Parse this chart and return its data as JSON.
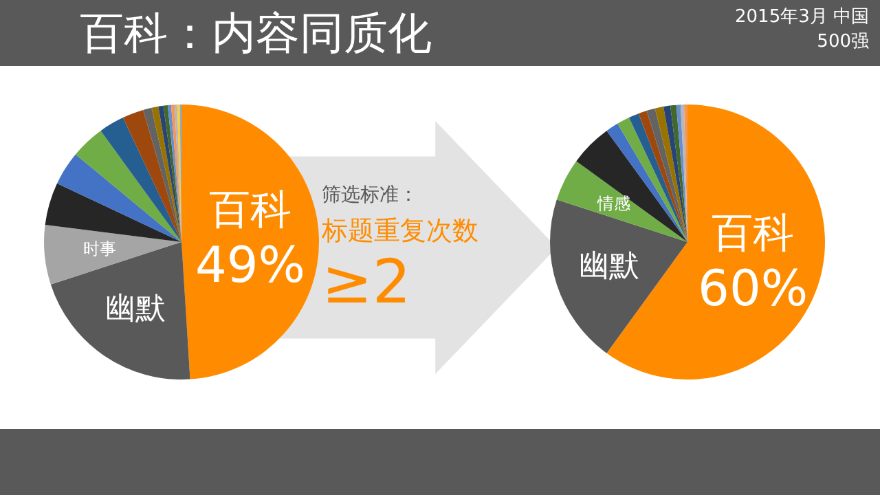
{
  "chart_data": [
    {
      "type": "pie",
      "title": "百科：内容同质化",
      "annotations": [
        "筛选标准：",
        "标题重复次数",
        "≥2"
      ],
      "categories": [
        "百科",
        "幽默",
        "时事",
        null,
        null,
        null,
        null,
        null,
        null,
        null,
        null,
        null,
        null,
        null,
        null,
        null,
        null
      ],
      "values": [
        49,
        21,
        7,
        5,
        4,
        4,
        3,
        2.5,
        1,
        0.8,
        0.6,
        0.5,
        0.4,
        0.4,
        0.3,
        0.3,
        0.2
      ],
      "value_labels": [
        "49%",
        null,
        null,
        null,
        null,
        null,
        null,
        null,
        null,
        null,
        null,
        null,
        null,
        null,
        null,
        null,
        null
      ],
      "colors": [
        "#ff8c00",
        "#595959",
        "#a5a5a5",
        "#262626",
        "#4472c4",
        "#70ad47",
        "#255e91",
        "#9e480e",
        "#636363",
        "#997300",
        "#264478",
        "#43682b",
        "#698ed0",
        "#f1975a",
        "#b7b7b7",
        "#ffcd33",
        "#7cafdd"
      ],
      "legend": false
    },
    {
      "type": "pie",
      "subtitle": "2015年3月 中国500强",
      "categories": [
        "百科",
        "幽默",
        "情感",
        null,
        null,
        null,
        null,
        null,
        null,
        null,
        null,
        null,
        null,
        null,
        null
      ],
      "values": [
        60,
        20,
        5,
        5,
        1.5,
        1.5,
        1.2,
        1,
        1,
        1,
        0.8,
        0.7,
        0.5,
        0.4,
        0.4
      ],
      "value_labels": [
        "60%",
        null,
        null,
        null,
        null,
        null,
        null,
        null,
        null,
        null,
        null,
        null,
        null,
        null,
        null
      ],
      "colors": [
        "#ff8c00",
        "#595959",
        "#70ad47",
        "#262626",
        "#4472c4",
        "#70ad47",
        "#255e91",
        "#9e480e",
        "#636363",
        "#997300",
        "#264478",
        "#43682b",
        "#698ed0",
        "#b7b7b7",
        "#f1975a"
      ],
      "legend": false
    }
  ]
}
